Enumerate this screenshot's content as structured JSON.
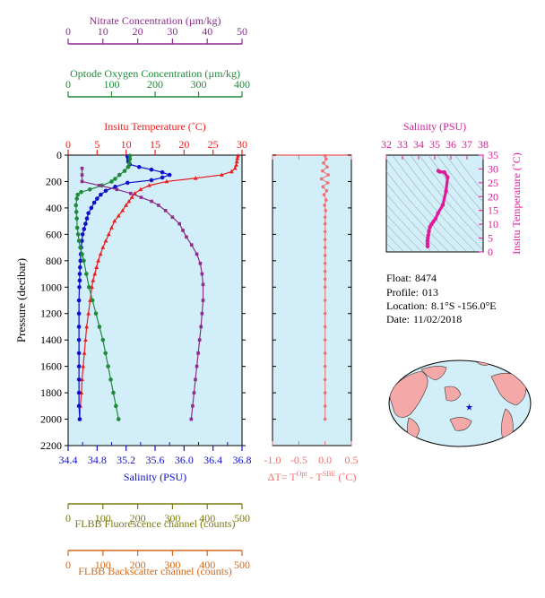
{
  "info": {
    "float_label": "Float:",
    "float_value": "8474",
    "profile_label": "Profile:",
    "profile_value": "013",
    "location_label": "Location:",
    "location_value": "8.1°S  -156.0°E",
    "date_label": "Date:",
    "date_value": "11/02/2018"
  },
  "colors": {
    "temperature": "#ee1c1c",
    "salinity": "#1010cc",
    "oxygen": "#1f8a3a",
    "nitrate": "#8b2e8b",
    "fluorescence": "#7a7a10",
    "backscatter": "#d2691e",
    "delta_t": "#f07070",
    "ts": "#e0199a",
    "plot_bg": "#d2eef8",
    "frame": "#000000",
    "grid": "#8a8a8a"
  },
  "chart_data": [
    {
      "type": "line",
      "ylabel": "Pressure (decibar)",
      "ylim": [
        0,
        2200
      ],
      "yticks": [
        0,
        200,
        400,
        600,
        800,
        1000,
        1200,
        1400,
        1600,
        1800,
        2000,
        2200
      ],
      "y_inverted": true,
      "axes": [
        {
          "key": "salinity",
          "label": "Salinity (PSU)",
          "range": [
            34.4,
            36.8
          ],
          "ticks": [
            "34.4",
            "34.8",
            "35.2",
            "35.6",
            "36.0",
            "36.4",
            "36.8"
          ],
          "position": "bottom"
        },
        {
          "key": "temperature",
          "label": "Insitu Temperature (˚C)",
          "range": [
            0,
            30
          ],
          "ticks": [
            "0",
            "5",
            "10",
            "15",
            "20",
            "25",
            "30"
          ],
          "position": "top"
        },
        {
          "key": "oxygen",
          "label": "Optode Oxygen Concentration (µm/kg)",
          "range": [
            0,
            400
          ],
          "ticks": [
            "0",
            "100",
            "200",
            "300",
            "400"
          ],
          "position": "top"
        },
        {
          "key": "nitrate",
          "label": "Nitrate Concentration (µm/kg)",
          "range": [
            0,
            50
          ],
          "ticks": [
            "0",
            "10",
            "20",
            "30",
            "40",
            "50"
          ],
          "position": "top"
        },
        {
          "key": "fluorescence",
          "label": "FLBB Fluorescence channel (counts)",
          "range": [
            0,
            500
          ],
          "ticks": [
            "0",
            "100",
            "200",
            "300",
            "400",
            "500"
          ],
          "position": "bottom"
        },
        {
          "key": "backscatter",
          "label": "FLBB Backscatter channel (counts)",
          "range": [
            0,
            500
          ],
          "ticks": [
            "0",
            "100",
            "200",
            "300",
            "400",
            "500"
          ],
          "position": "bottom"
        }
      ],
      "series": [
        {
          "name": "Insitu Temperature",
          "axis": "temperature",
          "marker": "triangle",
          "points": [
            [
              29.3,
              5
            ],
            [
              29.2,
              25
            ],
            [
              29.1,
              50
            ],
            [
              29.0,
              75
            ],
            [
              28.8,
              100
            ],
            [
              28.2,
              125
            ],
            [
              26.5,
              150
            ],
            [
              22.0,
              175
            ],
            [
              17.0,
              200
            ],
            [
              14.0,
              230
            ],
            [
              12.5,
              260
            ],
            [
              11.5,
              290
            ],
            [
              11.0,
              320
            ],
            [
              10.5,
              350
            ],
            [
              10.0,
              380
            ],
            [
              9.4,
              420
            ],
            [
              8.7,
              460
            ],
            [
              8.0,
              500
            ],
            [
              7.5,
              550
            ],
            [
              7.0,
              600
            ],
            [
              6.5,
              650
            ],
            [
              6.0,
              700
            ],
            [
              5.6,
              750
            ],
            [
              5.2,
              800
            ],
            [
              4.9,
              850
            ],
            [
              4.6,
              900
            ],
            [
              4.3,
              950
            ],
            [
              4.1,
              1000
            ],
            [
              3.8,
              1100
            ],
            [
              3.5,
              1200
            ],
            [
              3.2,
              1300
            ],
            [
              3.0,
              1400
            ],
            [
              2.8,
              1500
            ],
            [
              2.6,
              1600
            ],
            [
              2.4,
              1700
            ],
            [
              2.3,
              1800
            ],
            [
              2.1,
              1900
            ],
            [
              2.0,
              2000
            ]
          ]
        },
        {
          "name": "Salinity",
          "axis": "salinity",
          "marker": "circle",
          "points": [
            [
              35.22,
              10
            ],
            [
              35.23,
              30
            ],
            [
              35.23,
              50
            ],
            [
              35.25,
              70
            ],
            [
              35.38,
              90
            ],
            [
              35.55,
              110
            ],
            [
              35.7,
              130
            ],
            [
              35.8,
              150
            ],
            [
              35.7,
              170
            ],
            [
              35.55,
              190
            ],
            [
              35.22,
              210
            ],
            [
              35.05,
              240
            ],
            [
              34.92,
              270
            ],
            [
              34.85,
              300
            ],
            [
              34.8,
              330
            ],
            [
              34.76,
              360
            ],
            [
              34.72,
              400
            ],
            [
              34.68,
              440
            ],
            [
              34.66,
              480
            ],
            [
              34.64,
              520
            ],
            [
              34.62,
              560
            ],
            [
              34.6,
              600
            ],
            [
              34.59,
              650
            ],
            [
              34.58,
              700
            ],
            [
              34.575,
              750
            ],
            [
              34.57,
              800
            ],
            [
              34.565,
              850
            ],
            [
              34.56,
              900
            ],
            [
              34.56,
              950
            ],
            [
              34.555,
              1000
            ],
            [
              34.55,
              1100
            ],
            [
              34.55,
              1200
            ],
            [
              34.55,
              1300
            ],
            [
              34.55,
              1400
            ],
            [
              34.55,
              1500
            ],
            [
              34.55,
              1600
            ],
            [
              34.55,
              1700
            ],
            [
              34.55,
              1800
            ],
            [
              34.55,
              1900
            ],
            [
              34.56,
              2000
            ]
          ]
        },
        {
          "name": "Optode Oxygen Concentration",
          "axis": "oxygen",
          "marker": "circle",
          "points": [
            [
              142,
              5
            ],
            [
              142,
              30
            ],
            [
              141,
              60
            ],
            [
              138,
              90
            ],
            [
              130,
              120
            ],
            [
              118,
              150
            ],
            [
              108,
              180
            ],
            [
              100,
              200
            ],
            [
              78,
              230
            ],
            [
              50,
              260
            ],
            [
              30,
              280
            ],
            [
              22,
              300
            ],
            [
              20,
              330
            ],
            [
              18,
              380
            ],
            [
              19,
              430
            ],
            [
              20,
              480
            ],
            [
              21,
              550
            ],
            [
              23,
              600
            ],
            [
              25,
              650
            ],
            [
              28,
              700
            ],
            [
              32,
              750
            ],
            [
              36,
              800
            ],
            [
              42,
              900
            ],
            [
              48,
              1000
            ],
            [
              56,
              1100
            ],
            [
              64,
              1200
            ],
            [
              72,
              1300
            ],
            [
              80,
              1400
            ],
            [
              86,
              1500
            ],
            [
              92,
              1600
            ],
            [
              98,
              1700
            ],
            [
              104,
              1800
            ],
            [
              110,
              1900
            ],
            [
              116,
              2000
            ]
          ]
        },
        {
          "name": "Nitrate Concentration",
          "axis": "nitrate",
          "marker": "square",
          "points": [
            [
              4.0,
              100
            ],
            [
              4.0,
              150
            ],
            [
              4.0,
              200
            ],
            [
              9.0,
              230
            ],
            [
              14.0,
              260
            ],
            [
              18.0,
              290
            ],
            [
              21.0,
              320
            ],
            [
              24.0,
              350
            ],
            [
              26.0,
              380
            ],
            [
              28.0,
              420
            ],
            [
              30.0,
              470
            ],
            [
              32.0,
              520
            ],
            [
              33.0,
              570
            ],
            [
              34.0,
              620
            ],
            [
              35.5,
              680
            ],
            [
              37.0,
              750
            ],
            [
              38.0,
              820
            ],
            [
              38.5,
              900
            ],
            [
              38.8,
              980
            ],
            [
              38.8,
              1100
            ],
            [
              38.5,
              1200
            ],
            [
              38.2,
              1300
            ],
            [
              37.8,
              1400
            ],
            [
              37.4,
              1500
            ],
            [
              37.0,
              1600
            ],
            [
              36.6,
              1700
            ],
            [
              36.2,
              1800
            ],
            [
              35.8,
              1900
            ],
            [
              35.4,
              2000
            ]
          ]
        }
      ]
    },
    {
      "type": "scatter",
      "xlabel": "ΔT= T^Opt - T^SBE (˚C)",
      "xlim": [
        -1.0,
        0.5
      ],
      "xticks": [
        "-1.0",
        "-0.5",
        "0.0",
        "0.5"
      ],
      "ylim": [
        0,
        2200
      ],
      "series": [
        {
          "name": "ΔT",
          "values": [
            [
              0.0,
              5
            ],
            [
              0.02,
              30
            ],
            [
              -0.03,
              60
            ],
            [
              0.04,
              90
            ],
            [
              -0.05,
              120
            ],
            [
              0.06,
              150
            ],
            [
              -0.07,
              180
            ],
            [
              0.05,
              210
            ],
            [
              -0.04,
              240
            ],
            [
              0.03,
              270
            ],
            [
              -0.02,
              300
            ],
            [
              0.02,
              340
            ],
            [
              -0.01,
              380
            ],
            [
              0.01,
              420
            ],
            [
              0.0,
              470
            ],
            [
              0.0,
              520
            ],
            [
              0.0,
              580
            ],
            [
              0.0,
              640
            ],
            [
              0.0,
              700
            ],
            [
              0.0,
              760
            ],
            [
              0.0,
              820
            ],
            [
              0.0,
              880
            ],
            [
              0.0,
              940
            ],
            [
              0.0,
              1000
            ],
            [
              0.0,
              1100
            ],
            [
              0.0,
              1200
            ],
            [
              0.0,
              1300
            ],
            [
              0.0,
              1400
            ],
            [
              0.0,
              1500
            ],
            [
              0.0,
              1600
            ],
            [
              0.0,
              1700
            ],
            [
              0.0,
              1800
            ],
            [
              0.0,
              1900
            ],
            [
              0.0,
              2000
            ]
          ]
        }
      ]
    },
    {
      "type": "line",
      "title": "Salinity (PSU)",
      "ylabel": "Insitu Temperature (˚C)",
      "xlim": [
        32,
        38
      ],
      "xticks": [
        "32",
        "33",
        "34",
        "35",
        "36",
        "37",
        "38"
      ],
      "ylim": [
        0,
        35
      ],
      "yticks": [
        "0",
        "5",
        "10",
        "15",
        "20",
        "25",
        "30",
        "35"
      ],
      "series": [
        {
          "name": "T-S",
          "values": [
            [
              35.22,
              29.3
            ],
            [
              35.3,
              29.0
            ],
            [
              35.6,
              28.8
            ],
            [
              35.8,
              27.0
            ],
            [
              35.7,
              22.0
            ],
            [
              35.5,
              17.0
            ],
            [
              35.2,
              14.0
            ],
            [
              35.05,
              12.0
            ],
            [
              34.92,
              11.0
            ],
            [
              34.8,
              10.0
            ],
            [
              34.7,
              9.0
            ],
            [
              34.64,
              7.5
            ],
            [
              34.6,
              6.0
            ],
            [
              34.57,
              5.0
            ],
            [
              34.55,
              4.0
            ],
            [
              34.55,
              3.0
            ],
            [
              34.56,
              2.0
            ]
          ]
        }
      ]
    }
  ],
  "map": {
    "marker_lon": -156.0,
    "marker_lat": -8.1
  }
}
